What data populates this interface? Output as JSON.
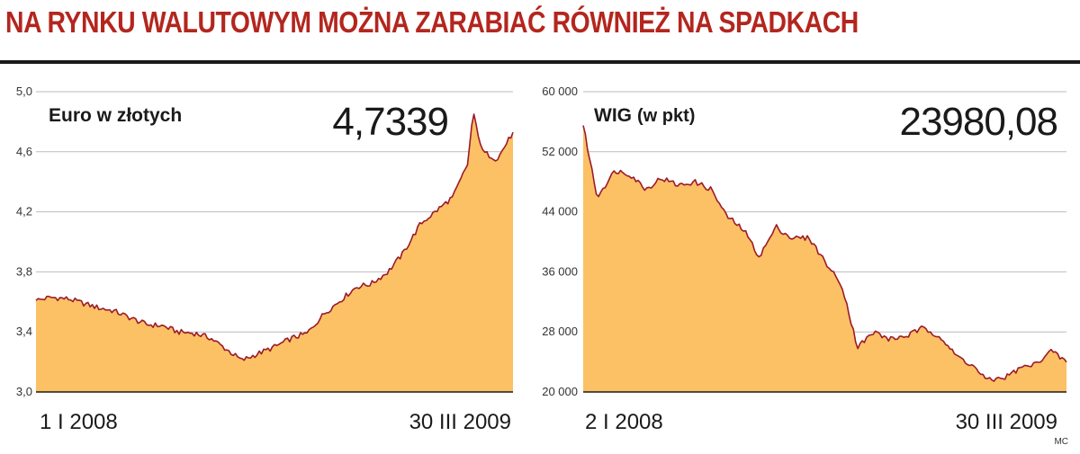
{
  "headline": "NA RYNKU WALUTOWYM MOŻNA ZARABIAĆ RÓWNIEŻ NA SPADKACH",
  "credit": "MC",
  "colors": {
    "headline": "#b3261e",
    "fill": "#fbc164",
    "line": "#9b1b2a",
    "grid": "#bbbbbb"
  },
  "chart_data": [
    {
      "type": "area",
      "title": "Euro w złotych",
      "unit": "",
      "last_value_label": "4,7339",
      "ylim": [
        3.0,
        5.0
      ],
      "y_ticks": [
        3.0,
        3.4,
        3.8,
        4.2,
        4.6,
        5.0
      ],
      "y_tick_labels": [
        "3,0",
        "3,4",
        "3,8",
        "4,2",
        "4,6",
        "5,0"
      ],
      "x_start_label": "1 I 2008",
      "x_end_label": "30 III 2009",
      "grid": true,
      "x": [
        "2008-01-01",
        "2008-01-15",
        "2008-02-01",
        "2008-02-15",
        "2008-03-01",
        "2008-03-15",
        "2008-04-01",
        "2008-04-15",
        "2008-05-01",
        "2008-05-15",
        "2008-06-01",
        "2008-06-15",
        "2008-07-01",
        "2008-07-15",
        "2008-08-01",
        "2008-08-15",
        "2008-09-01",
        "2008-09-15",
        "2008-10-01",
        "2008-10-15",
        "2008-11-01",
        "2008-11-15",
        "2008-12-01",
        "2008-12-15",
        "2009-01-01",
        "2009-01-15",
        "2009-02-01",
        "2009-02-15",
        "2009-02-20",
        "2009-03-01",
        "2009-03-15",
        "2009-03-30"
      ],
      "values": [
        3.61,
        3.63,
        3.62,
        3.59,
        3.56,
        3.54,
        3.49,
        3.45,
        3.44,
        3.4,
        3.39,
        3.36,
        3.28,
        3.21,
        3.26,
        3.3,
        3.36,
        3.39,
        3.52,
        3.6,
        3.7,
        3.72,
        3.8,
        3.92,
        4.12,
        4.2,
        4.3,
        4.52,
        4.86,
        4.6,
        4.55,
        4.73
      ]
    },
    {
      "type": "area",
      "title": "WIG",
      "unit": "(w pkt)",
      "last_value_label": "23980,08",
      "ylim": [
        20000,
        60000
      ],
      "y_ticks": [
        20000,
        28000,
        36000,
        44000,
        52000,
        60000
      ],
      "y_tick_labels": [
        "20 000",
        "28 000",
        "36 000",
        "44 000",
        "52 000",
        "60 000"
      ],
      "x_start_label": "2 I 2008",
      "x_end_label": "30 III 2009",
      "grid": true,
      "x": [
        "2008-01-02",
        "2008-01-15",
        "2008-02-01",
        "2008-02-15",
        "2008-03-01",
        "2008-03-15",
        "2008-04-01",
        "2008-04-15",
        "2008-05-01",
        "2008-05-15",
        "2008-06-01",
        "2008-06-15",
        "2008-07-01",
        "2008-07-15",
        "2008-08-01",
        "2008-08-15",
        "2008-09-01",
        "2008-09-15",
        "2008-10-01",
        "2008-10-15",
        "2008-11-01",
        "2008-11-15",
        "2008-12-01",
        "2008-12-15",
        "2009-01-01",
        "2009-01-15",
        "2009-02-01",
        "2009-02-15",
        "2009-03-01",
        "2009-03-15",
        "2009-03-30"
      ],
      "values": [
        55500,
        46000,
        49500,
        49000,
        47000,
        48500,
        47500,
        48000,
        47000,
        43500,
        41500,
        38000,
        42000,
        40500,
        40500,
        37500,
        34000,
        26000,
        28000,
        27000,
        27500,
        28500,
        27500,
        25000,
        23500,
        21500,
        22000,
        23200,
        23700,
        25500,
        23980
      ]
    }
  ]
}
